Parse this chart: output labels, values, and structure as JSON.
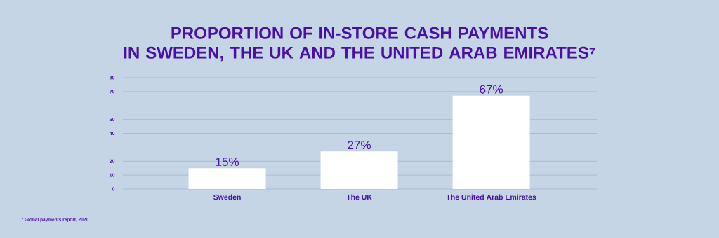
{
  "chart_data": {
    "type": "bar",
    "title": "PROPORTION OF IN-STORE CASH PAYMENTS\nIN SWEDEN, THE UK AND THE UNITED ARAB EMIRATES⁷",
    "categories": [
      "Sweden",
      "The UK",
      "The United Arab Emirates"
    ],
    "values": [
      15,
      27,
      67
    ],
    "value_labels": [
      "15%",
      "27%",
      "67%"
    ],
    "color": "#ffffff",
    "ylim": [
      0,
      80
    ],
    "yticks": [
      0,
      10,
      20,
      40,
      50,
      70,
      80
    ],
    "grid": "y",
    "annotations": [
      "⁷ Global payments report, 2020"
    ]
  }
}
